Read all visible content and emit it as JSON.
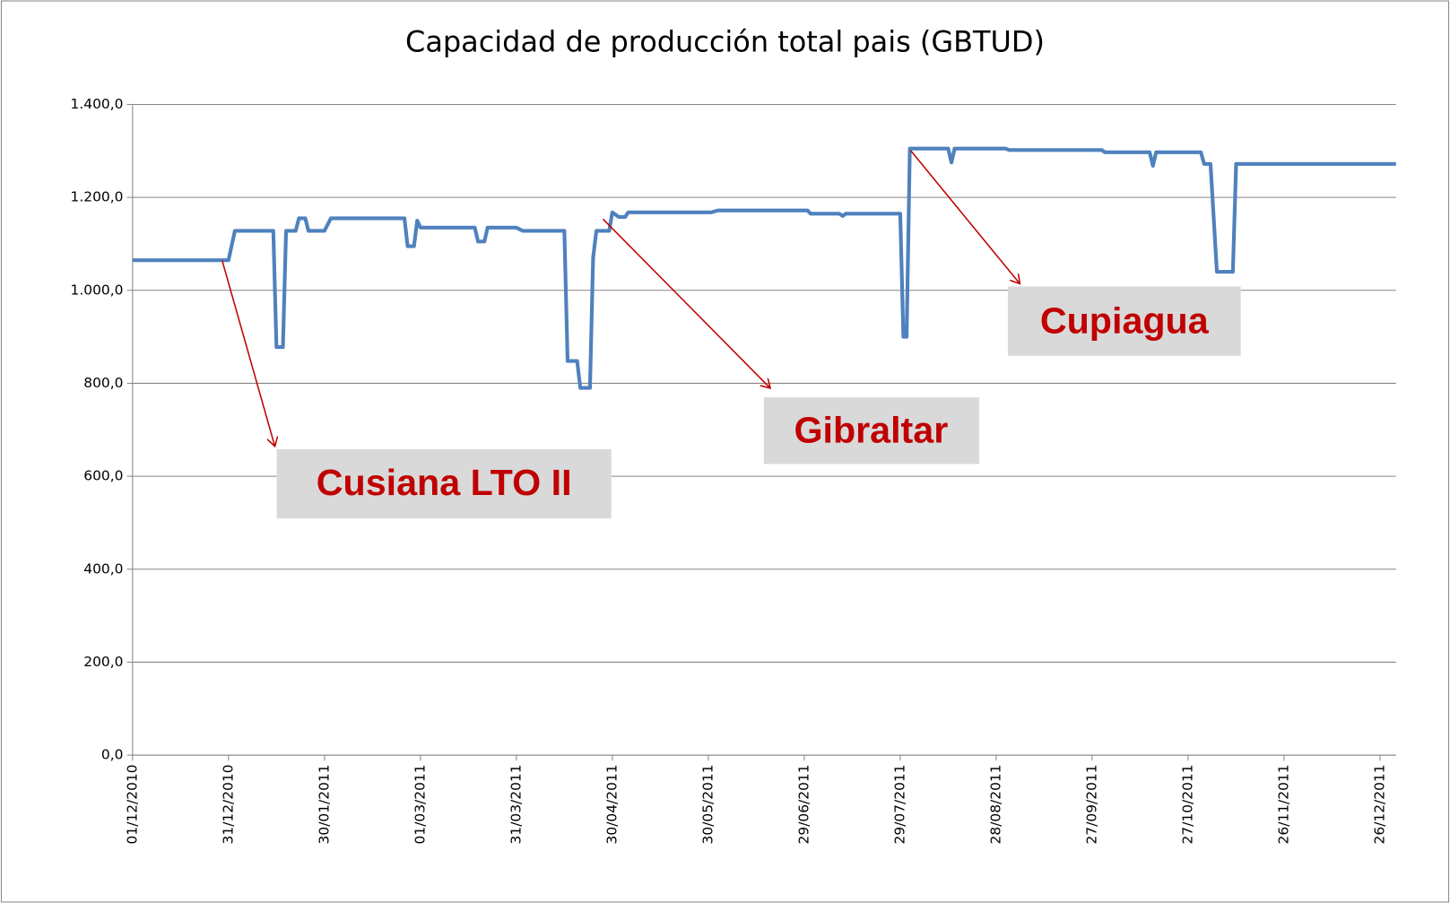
{
  "chart_data": {
    "type": "line",
    "title": "Capacidad de producción total pais (GBTUD)",
    "x": [
      "2010-12-01",
      "2010-12-31",
      "2011-01-02",
      "2011-01-14",
      "2011-01-15",
      "2011-01-17",
      "2011-01-18",
      "2011-01-21",
      "2011-01-22",
      "2011-01-24",
      "2011-01-25",
      "2011-01-30",
      "2011-02-01",
      "2011-02-24",
      "2011-02-25",
      "2011-02-27",
      "2011-02-28",
      "2011-03-01",
      "2011-03-18",
      "2011-03-19",
      "2011-03-21",
      "2011-03-22",
      "2011-03-31",
      "2011-04-02",
      "2011-04-15",
      "2011-04-16",
      "2011-04-19",
      "2011-04-20",
      "2011-04-23",
      "2011-04-24",
      "2011-04-25",
      "2011-04-29",
      "2011-04-30",
      "2011-05-02",
      "2011-05-04",
      "2011-05-05",
      "2011-05-31",
      "2011-06-02",
      "2011-06-30",
      "2011-07-01",
      "2011-07-10",
      "2011-07-11",
      "2011-07-12",
      "2011-07-29",
      "2011-07-30",
      "2011-07-31",
      "2011-08-01",
      "2011-08-13",
      "2011-08-14",
      "2011-08-15",
      "2011-08-31",
      "2011-09-01",
      "2011-09-30",
      "2011-10-01",
      "2011-10-15",
      "2011-10-16",
      "2011-10-17",
      "2011-10-31",
      "2011-11-01",
      "2011-11-03",
      "2011-11-05",
      "2011-11-10",
      "2011-11-11",
      "2011-12-31"
    ],
    "series": [
      {
        "name": "Capacidad",
        "color": "#4f81bd",
        "values": [
          1065,
          1065,
          1128,
          1128,
          878,
          878,
          1128,
          1128,
          1155,
          1155,
          1128,
          1128,
          1155,
          1155,
          1095,
          1095,
          1150,
          1135,
          1135,
          1105,
          1105,
          1135,
          1135,
          1128,
          1128,
          848,
          848,
          790,
          790,
          1070,
          1128,
          1128,
          1168,
          1158,
          1158,
          1168,
          1168,
          1172,
          1172,
          1165,
          1165,
          1160,
          1165,
          1165,
          900,
          900,
          1305,
          1305,
          1275,
          1305,
          1305,
          1302,
          1302,
          1297,
          1297,
          1268,
          1297,
          1297,
          1272,
          1272,
          1040,
          1040,
          1272,
          1272
        ]
      }
    ],
    "xlim": [
      "2010-12-01",
      "2011-12-31"
    ],
    "xticks": [
      {
        "value": "2010-12-01",
        "label": "01/12/2010"
      },
      {
        "value": "2010-12-31",
        "label": "31/12/2010"
      },
      {
        "value": "2011-01-30",
        "label": "30/01/2011"
      },
      {
        "value": "2011-03-01",
        "label": "01/03/2011"
      },
      {
        "value": "2011-03-31",
        "label": "31/03/2011"
      },
      {
        "value": "2011-04-30",
        "label": "30/04/2011"
      },
      {
        "value": "2011-05-30",
        "label": "30/05/2011"
      },
      {
        "value": "2011-06-29",
        "label": "29/06/2011"
      },
      {
        "value": "2011-07-29",
        "label": "29/07/2011"
      },
      {
        "value": "2011-08-28",
        "label": "28/08/2011"
      },
      {
        "value": "2011-09-27",
        "label": "27/09/2011"
      },
      {
        "value": "2011-10-27",
        "label": "27/10/2011"
      },
      {
        "value": "2011-11-26",
        "label": "26/11/2011"
      },
      {
        "value": "2011-12-26",
        "label": "26/12/2011"
      }
    ],
    "ylim": [
      0,
      1400
    ],
    "yticks": [
      {
        "value": 0,
        "label": "0,0"
      },
      {
        "value": 200,
        "label": "200,0"
      },
      {
        "value": 400,
        "label": "400,0"
      },
      {
        "value": 600,
        "label": "600,0"
      },
      {
        "value": 800,
        "label": "800,0"
      },
      {
        "value": 1000,
        "label": "1.000,0"
      },
      {
        "value": 1200,
        "label": "1.200,0"
      },
      {
        "value": 1400,
        "label": "1.400,0"
      }
    ],
    "grid": true,
    "annotations": [
      "Cusiana LTO II",
      "Gibraltar",
      "Cupiagua"
    ]
  }
}
